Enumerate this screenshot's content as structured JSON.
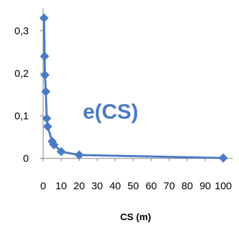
{
  "chart_data": {
    "type": "line",
    "xlabel": "CS (m)",
    "ylabel": "",
    "annotation": "e(CS)",
    "xlim": [
      0,
      100
    ],
    "ylim": [
      0,
      0.34
    ],
    "x_ticks": [
      0,
      10,
      20,
      30,
      40,
      50,
      60,
      70,
      80,
      90,
      100
    ],
    "x_tick_labels": [
      "0",
      "10",
      "20",
      "30",
      "40",
      "50",
      "60",
      "70",
      "80",
      "90",
      "100"
    ],
    "y_ticks": [
      0,
      0.1,
      0.2,
      0.3
    ],
    "y_tick_labels": [
      "0",
      "0,1",
      "0,2",
      "0,3"
    ],
    "grid": false,
    "legend": "none",
    "series": [
      {
        "color": "#4a7bc4",
        "marker": "diamond",
        "points": [
          {
            "x": 0.5,
            "y": 0.33
          },
          {
            "x": 0.8,
            "y": 0.24
          },
          {
            "x": 1,
            "y": 0.196
          },
          {
            "x": 1.5,
            "y": 0.157
          },
          {
            "x": 2,
            "y": 0.094
          },
          {
            "x": 2.5,
            "y": 0.075
          },
          {
            "x": 5,
            "y": 0.04
          },
          {
            "x": 6,
            "y": 0.032
          },
          {
            "x": 10,
            "y": 0.016
          },
          {
            "x": 20,
            "y": 0.008
          },
          {
            "x": 100,
            "y": 0.001
          }
        ]
      }
    ],
    "colors": {
      "annotation": "#4a7bc4",
      "axis": "#7f7f7f"
    }
  }
}
